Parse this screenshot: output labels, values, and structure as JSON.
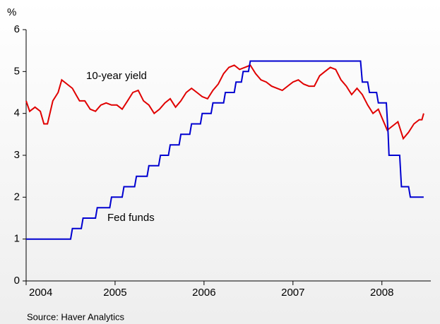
{
  "chart_data": {
    "type": "line",
    "y_label": "%",
    "source": "Source: Haver Analytics",
    "annotations": [
      "10-year yield",
      "Fed funds"
    ],
    "xlim": [
      2004,
      2008.55
    ],
    "xticks": [
      2004,
      2005,
      2006,
      2007,
      2008
    ],
    "ylim": [
      0,
      6
    ],
    "yticks": [
      0,
      1,
      2,
      3,
      4,
      5,
      6
    ],
    "series": [
      {
        "name": "10-year yield",
        "color": "#e00000",
        "x": [
          2004.0,
          2004.04,
          2004.1,
          2004.16,
          2004.2,
          2004.24,
          2004.3,
          2004.36,
          2004.4,
          2004.46,
          2004.52,
          2004.56,
          2004.6,
          2004.66,
          2004.72,
          2004.78,
          2004.84,
          2004.9,
          2004.96,
          2005.02,
          2005.08,
          2005.14,
          2005.2,
          2005.26,
          2005.32,
          2005.38,
          2005.44,
          2005.5,
          2005.56,
          2005.62,
          2005.68,
          2005.74,
          2005.8,
          2005.86,
          2005.92,
          2005.98,
          2006.04,
          2006.1,
          2006.16,
          2006.22,
          2006.28,
          2006.34,
          2006.4,
          2006.46,
          2006.52,
          2006.58,
          2006.64,
          2006.7,
          2006.76,
          2006.82,
          2006.88,
          2006.94,
          2007.0,
          2007.06,
          2007.12,
          2007.18,
          2007.24,
          2007.3,
          2007.36,
          2007.42,
          2007.48,
          2007.54,
          2007.6,
          2007.66,
          2007.72,
          2007.78,
          2007.84,
          2007.9,
          2007.96,
          2008.0,
          2008.06,
          2008.12,
          2008.18,
          2008.24,
          2008.3,
          2008.36,
          2008.42,
          2008.45,
          2008.47
        ],
        "values": [
          4.3,
          4.05,
          4.15,
          4.05,
          3.75,
          3.75,
          4.3,
          4.5,
          4.8,
          4.7,
          4.6,
          4.45,
          4.3,
          4.3,
          4.1,
          4.05,
          4.2,
          4.25,
          4.2,
          4.2,
          4.1,
          4.3,
          4.5,
          4.55,
          4.3,
          4.2,
          4.0,
          4.1,
          4.25,
          4.35,
          4.15,
          4.3,
          4.5,
          4.6,
          4.5,
          4.4,
          4.35,
          4.55,
          4.7,
          4.95,
          5.1,
          5.15,
          5.05,
          5.1,
          5.15,
          4.95,
          4.8,
          4.75,
          4.65,
          4.6,
          4.55,
          4.65,
          4.75,
          4.8,
          4.7,
          4.65,
          4.65,
          4.9,
          5.0,
          5.1,
          5.05,
          4.8,
          4.65,
          4.45,
          4.6,
          4.45,
          4.2,
          4.0,
          4.1,
          3.9,
          3.6,
          3.7,
          3.8,
          3.4,
          3.55,
          3.75,
          3.85,
          3.85,
          4.0
        ]
      },
      {
        "name": "Fed funds",
        "color": "#0000d0",
        "x": [
          2004.0,
          2004.5,
          2004.52,
          2004.62,
          2004.64,
          2004.78,
          2004.8,
          2004.94,
          2004.96,
          2005.08,
          2005.1,
          2005.22,
          2005.24,
          2005.36,
          2005.38,
          2005.49,
          2005.51,
          2005.6,
          2005.62,
          2005.72,
          2005.74,
          2005.84,
          2005.86,
          2005.96,
          2005.98,
          2006.08,
          2006.1,
          2006.22,
          2006.24,
          2006.34,
          2006.36,
          2006.42,
          2006.44,
          2006.5,
          2006.52,
          2007.76,
          2007.78,
          2007.84,
          2007.86,
          2007.94,
          2007.96,
          2008.05,
          2008.07,
          2008.08,
          2008.2,
          2008.22,
          2008.3,
          2008.32,
          2008.47
        ],
        "values": [
          1.0,
          1.0,
          1.25,
          1.25,
          1.5,
          1.5,
          1.75,
          1.75,
          2.0,
          2.0,
          2.25,
          2.25,
          2.5,
          2.5,
          2.75,
          2.75,
          3.0,
          3.0,
          3.25,
          3.25,
          3.5,
          3.5,
          3.75,
          3.75,
          4.0,
          4.0,
          4.25,
          4.25,
          4.5,
          4.5,
          4.75,
          4.75,
          5.0,
          5.0,
          5.25,
          5.25,
          4.75,
          4.75,
          4.5,
          4.5,
          4.25,
          4.25,
          3.5,
          3.0,
          3.0,
          2.25,
          2.25,
          2.0,
          2.0
        ]
      }
    ]
  }
}
